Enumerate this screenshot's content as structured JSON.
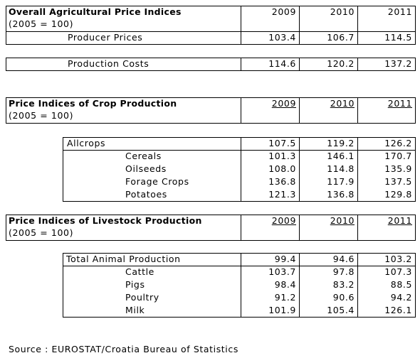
{
  "overall": {
    "title": "Overall Agricultural Price Indices",
    "subtitle": "(2005 = 100)",
    "years": [
      "2009",
      "2010",
      "2011"
    ],
    "producer": {
      "label": "Producer Prices",
      "values": [
        "103.4",
        "106.7",
        "114.5"
      ]
    },
    "costs": {
      "label": "Production Costs",
      "values": [
        "114.6",
        "120.2",
        "137.2"
      ]
    }
  },
  "crop": {
    "title": "Price Indices of Crop Production",
    "subtitle": "(2005 = 100)",
    "years": [
      "2009",
      "2010",
      "2011"
    ],
    "total": {
      "label": "Allcrops",
      "values": [
        "107.5",
        "119.2",
        "126.2"
      ]
    },
    "items": [
      {
        "label": "Cereals",
        "values": [
          "101.3",
          "146.1",
          "170.7"
        ]
      },
      {
        "label": "Oilseeds",
        "values": [
          "108.0",
          "114.8",
          "135.9"
        ]
      },
      {
        "label": "Forage Crops",
        "values": [
          "136.8",
          "117.9",
          "137.5"
        ]
      },
      {
        "label": "Potatoes",
        "values": [
          "121.3",
          "136.8",
          "129.8"
        ]
      }
    ]
  },
  "livestock": {
    "title": "Price Indices of Livestock Production",
    "subtitle": "(2005 = 100)",
    "years": [
      "2009",
      "2010",
      "2011"
    ],
    "total": {
      "label": "Total Animal Production",
      "values": [
        "99.4",
        "94.6",
        "103.2"
      ]
    },
    "items": [
      {
        "label": "Cattle",
        "values": [
          "103.7",
          "97.8",
          "107.3"
        ]
      },
      {
        "label": "Pigs",
        "values": [
          "98.4",
          "83.2",
          "88.5"
        ]
      },
      {
        "label": "Poultry",
        "values": [
          "91.2",
          "90.6",
          "94.2"
        ]
      },
      {
        "label": "Milk",
        "values": [
          "101.9",
          "105.4",
          "126.1"
        ]
      }
    ]
  },
  "source": "Source : EUROSTAT/Croatia Bureau of Statistics"
}
